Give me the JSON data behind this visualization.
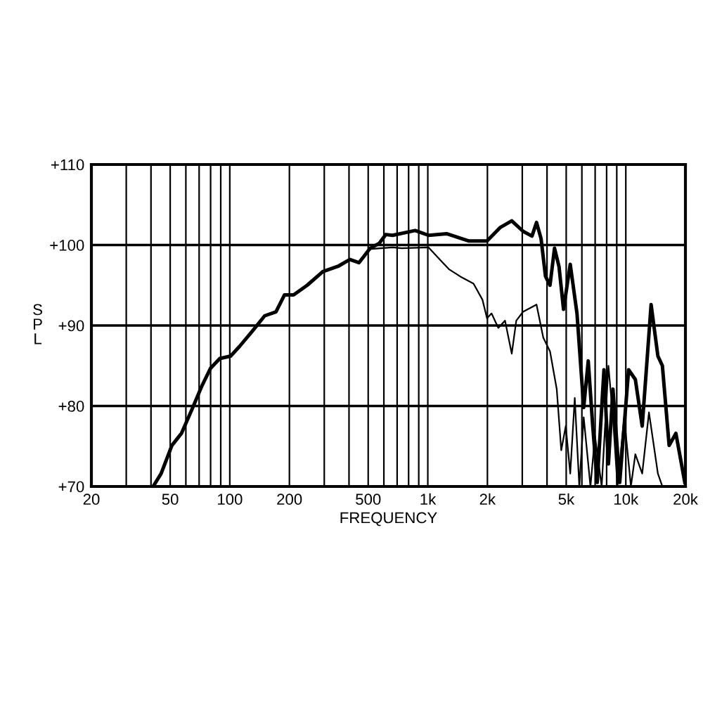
{
  "chart_data": {
    "type": "line",
    "xlabel": "FREQUENCY",
    "ylabel": "S\nP\nL",
    "log": "x",
    "grid": true,
    "marker": "none",
    "line_style": "solid",
    "xlim": [
      20,
      20000
    ],
    "ylim": [
      70,
      110
    ],
    "xticks": [
      20,
      50,
      100,
      200,
      500,
      {
        "value": 1000,
        "label": "1k"
      },
      {
        "value": 2000,
        "label": "2k"
      },
      {
        "value": 5000,
        "label": "5k"
      },
      {
        "value": 10000,
        "label": "10k"
      },
      {
        "value": 20000,
        "label": "20k"
      }
    ],
    "yticks": [
      {
        "value": 70,
        "label": "+70"
      },
      {
        "value": 80,
        "label": "+80"
      },
      {
        "value": 90,
        "label": "+90"
      },
      {
        "value": 100,
        "label": "+100"
      },
      {
        "value": 110,
        "label": "+110"
      }
    ],
    "series": [
      {
        "color": "#000000",
        "x": [
          41,
          45,
          51,
          57,
          65,
          72,
          80,
          89,
          101,
          112,
          131,
          150,
          171,
          189,
          210,
          246,
          295,
          355,
          404,
          449,
          512,
          568,
          614,
          664,
          863,
          1009,
          1244,
          1614,
          1991,
          2328,
          2654,
          3027,
          3358,
          3540,
          3732,
          3930,
          4141,
          4365,
          4600,
          4846,
          5240,
          5668,
          6128,
          6460,
          6806,
          7170,
          7756,
          8170,
          8610,
          9313,
          10330,
          11170,
          12100,
          13420,
          14520,
          15300,
          16550,
          17900,
          19860
        ],
        "values": [
          70.0,
          71.6,
          75.1,
          76.6,
          79.8,
          82.4,
          84.7,
          85.9,
          86.2,
          87.4,
          89.4,
          91.2,
          91.7,
          93.8,
          93.8,
          95.0,
          96.7,
          97.4,
          98.2,
          97.8,
          99.6,
          100.2,
          101.3,
          101.2,
          101.8,
          101.2,
          101.4,
          100.5,
          100.5,
          102.2,
          103.0,
          101.7,
          101.1,
          102.8,
          100.8,
          96.1,
          95.0,
          99.6,
          97.3,
          92.0,
          97.6,
          91.5,
          79.8,
          85.6,
          77.5,
          70.5,
          84.5,
          72.8,
          82.1,
          70.5,
          84.5,
          83.3,
          77.5,
          92.6,
          86.2,
          85.0,
          75.1,
          76.6,
          70.5
        ]
      },
      {
        "color": "#000000",
        "x": [
          512,
          664,
          738,
          1009,
          1120,
          1277,
          1456,
          1702,
          1888,
          1991,
          2098,
          2270,
          2455,
          2654,
          2798,
          3027,
          3358,
          3540,
          3829,
          4141,
          4478,
          4720,
          4974,
          5240,
          5523,
          5822,
          6128,
          6628,
          6986,
          7554,
          8170,
          8610,
          9074,
          9813,
          10610,
          11170,
          12100,
          13090,
          14520,
          15300
        ],
        "values": [
          99.5,
          99.7,
          99.6,
          99.7,
          98.5,
          97.0,
          96.1,
          95.2,
          93.2,
          90.9,
          91.5,
          89.7,
          90.6,
          86.5,
          90.6,
          91.7,
          92.3,
          92.6,
          88.5,
          86.8,
          82.1,
          74.5,
          77.5,
          71.6,
          81.0,
          70.0,
          78.6,
          70.0,
          76.3,
          70.0,
          85.0,
          78.6,
          70.0,
          78.6,
          70.0,
          74.0,
          71.6,
          79.2,
          71.6,
          70.0
        ]
      }
    ]
  }
}
